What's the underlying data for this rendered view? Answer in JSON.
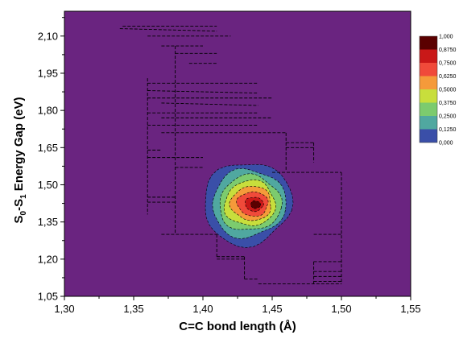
{
  "chart_data": {
    "type": "heatmap",
    "xlabel": "C=C bond length (Å)",
    "ylabel_parts": [
      "S",
      "0",
      "-S",
      "1",
      " Energy Gap (eV)"
    ],
    "xlim": [
      1.3,
      1.55
    ],
    "ylim": [
      1.05,
      2.2
    ],
    "x_ticks": [
      "1,30",
      "1,35",
      "1,40",
      "1,45",
      "1,50",
      "1,55"
    ],
    "y_ticks": [
      "1,05",
      "1,20",
      "1,35",
      "1,50",
      "1,65",
      "1,80",
      "1,95",
      "2,10"
    ],
    "colorbar": {
      "labels": [
        "1,000",
        "0,8750",
        "0,7500",
        "0,6250",
        "0,5000",
        "0,3750",
        "0,2500",
        "0,1250",
        "0,000"
      ],
      "colors": [
        "#5a0000",
        "#c91818",
        "#f04a3a",
        "#f59a3a",
        "#c8de3c",
        "#7ccb6e",
        "#50a8a0",
        "#3a4fa8",
        "#6a2480"
      ]
    },
    "contours": [
      {
        "level": 0.125,
        "center": [
          1.432,
          1.425
        ],
        "rx": 0.031,
        "ry": 0.165
      },
      {
        "level": 0.25,
        "center": [
          1.433,
          1.425
        ],
        "rx": 0.026,
        "ry": 0.135
      },
      {
        "level": 0.375,
        "center": [
          1.434,
          1.425
        ],
        "rx": 0.022,
        "ry": 0.11
      },
      {
        "level": 0.5,
        "center": [
          1.434,
          1.425
        ],
        "rx": 0.018,
        "ry": 0.09
      },
      {
        "level": 0.625,
        "center": [
          1.435,
          1.425
        ],
        "rx": 0.0145,
        "ry": 0.068
      },
      {
        "level": 0.75,
        "center": [
          1.436,
          1.423
        ],
        "rx": 0.011,
        "ry": 0.048
      },
      {
        "level": 0.875,
        "center": [
          1.437,
          1.422
        ],
        "rx": 0.0065,
        "ry": 0.028
      },
      {
        "level": 1.0,
        "center": [
          1.438,
          1.42
        ],
        "rx": 0.0035,
        "ry": 0.015
      }
    ],
    "dashed_segments": [
      [
        [
          1.342,
          2.14
        ],
        [
          1.41,
          2.14
        ]
      ],
      [
        [
          1.34,
          2.13
        ],
        [
          1.41,
          2.12
        ]
      ],
      [
        [
          1.36,
          2.1
        ],
        [
          1.42,
          2.1
        ]
      ],
      [
        [
          1.37,
          2.06
        ],
        [
          1.4,
          2.06
        ]
      ],
      [
        [
          1.38,
          2.03
        ],
        [
          1.41,
          2.03
        ]
      ],
      [
        [
          1.39,
          1.99
        ],
        [
          1.41,
          1.99
        ]
      ],
      [
        [
          1.36,
          1.91
        ],
        [
          1.44,
          1.91
        ]
      ],
      [
        [
          1.36,
          1.88
        ],
        [
          1.44,
          1.87
        ]
      ],
      [
        [
          1.36,
          1.85
        ],
        [
          1.45,
          1.85
        ]
      ],
      [
        [
          1.37,
          1.83
        ],
        [
          1.44,
          1.82
        ]
      ],
      [
        [
          1.36,
          1.79
        ],
        [
          1.44,
          1.79
        ]
      ],
      [
        [
          1.37,
          1.77
        ],
        [
          1.45,
          1.77
        ]
      ],
      [
        [
          1.36,
          1.74
        ],
        [
          1.44,
          1.74
        ]
      ],
      [
        [
          1.37,
          1.71
        ],
        [
          1.46,
          1.71
        ]
      ],
      [
        [
          1.46,
          1.67
        ],
        [
          1.48,
          1.67
        ]
      ],
      [
        [
          1.46,
          1.65
        ],
        [
          1.48,
          1.65
        ]
      ],
      [
        [
          1.36,
          1.64
        ],
        [
          1.37,
          1.64
        ]
      ],
      [
        [
          1.36,
          1.61
        ],
        [
          1.4,
          1.61
        ]
      ],
      [
        [
          1.38,
          1.57
        ],
        [
          1.4,
          1.57
        ]
      ],
      [
        [
          1.45,
          1.55
        ],
        [
          1.5,
          1.55
        ]
      ],
      [
        [
          1.36,
          1.45
        ],
        [
          1.38,
          1.45
        ]
      ],
      [
        [
          1.36,
          1.43
        ],
        [
          1.38,
          1.43
        ]
      ],
      [
        [
          1.37,
          1.3
        ],
        [
          1.41,
          1.3
        ]
      ],
      [
        [
          1.48,
          1.3
        ],
        [
          1.5,
          1.3
        ]
      ],
      [
        [
          1.41,
          1.21
        ],
        [
          1.43,
          1.21
        ]
      ],
      [
        [
          1.41,
          1.2
        ],
        [
          1.43,
          1.2
        ]
      ],
      [
        [
          1.48,
          1.19
        ],
        [
          1.5,
          1.19
        ]
      ],
      [
        [
          1.48,
          1.15
        ],
        [
          1.5,
          1.15
        ]
      ],
      [
        [
          1.48,
          1.13
        ],
        [
          1.5,
          1.13
        ]
      ],
      [
        [
          1.48,
          1.11
        ],
        [
          1.5,
          1.11
        ]
      ],
      [
        [
          1.44,
          1.1
        ],
        [
          1.5,
          1.1
        ]
      ],
      [
        [
          1.36,
          1.93
        ],
        [
          1.36,
          1.38
        ]
      ],
      [
        [
          1.38,
          2.06
        ],
        [
          1.38,
          1.3
        ]
      ],
      [
        [
          1.41,
          1.3
        ],
        [
          1.41,
          1.21
        ]
      ],
      [
        [
          1.43,
          1.21
        ],
        [
          1.43,
          1.12
        ]
      ],
      [
        [
          1.43,
          1.12
        ],
        [
          1.44,
          1.12
        ]
      ],
      [
        [
          1.46,
          1.71
        ],
        [
          1.46,
          1.56
        ]
      ],
      [
        [
          1.48,
          1.67
        ],
        [
          1.48,
          1.59
        ]
      ],
      [
        [
          1.5,
          1.55
        ],
        [
          1.5,
          1.1
        ]
      ],
      [
        [
          1.48,
          1.19
        ],
        [
          1.48,
          1.1
        ]
      ]
    ]
  }
}
